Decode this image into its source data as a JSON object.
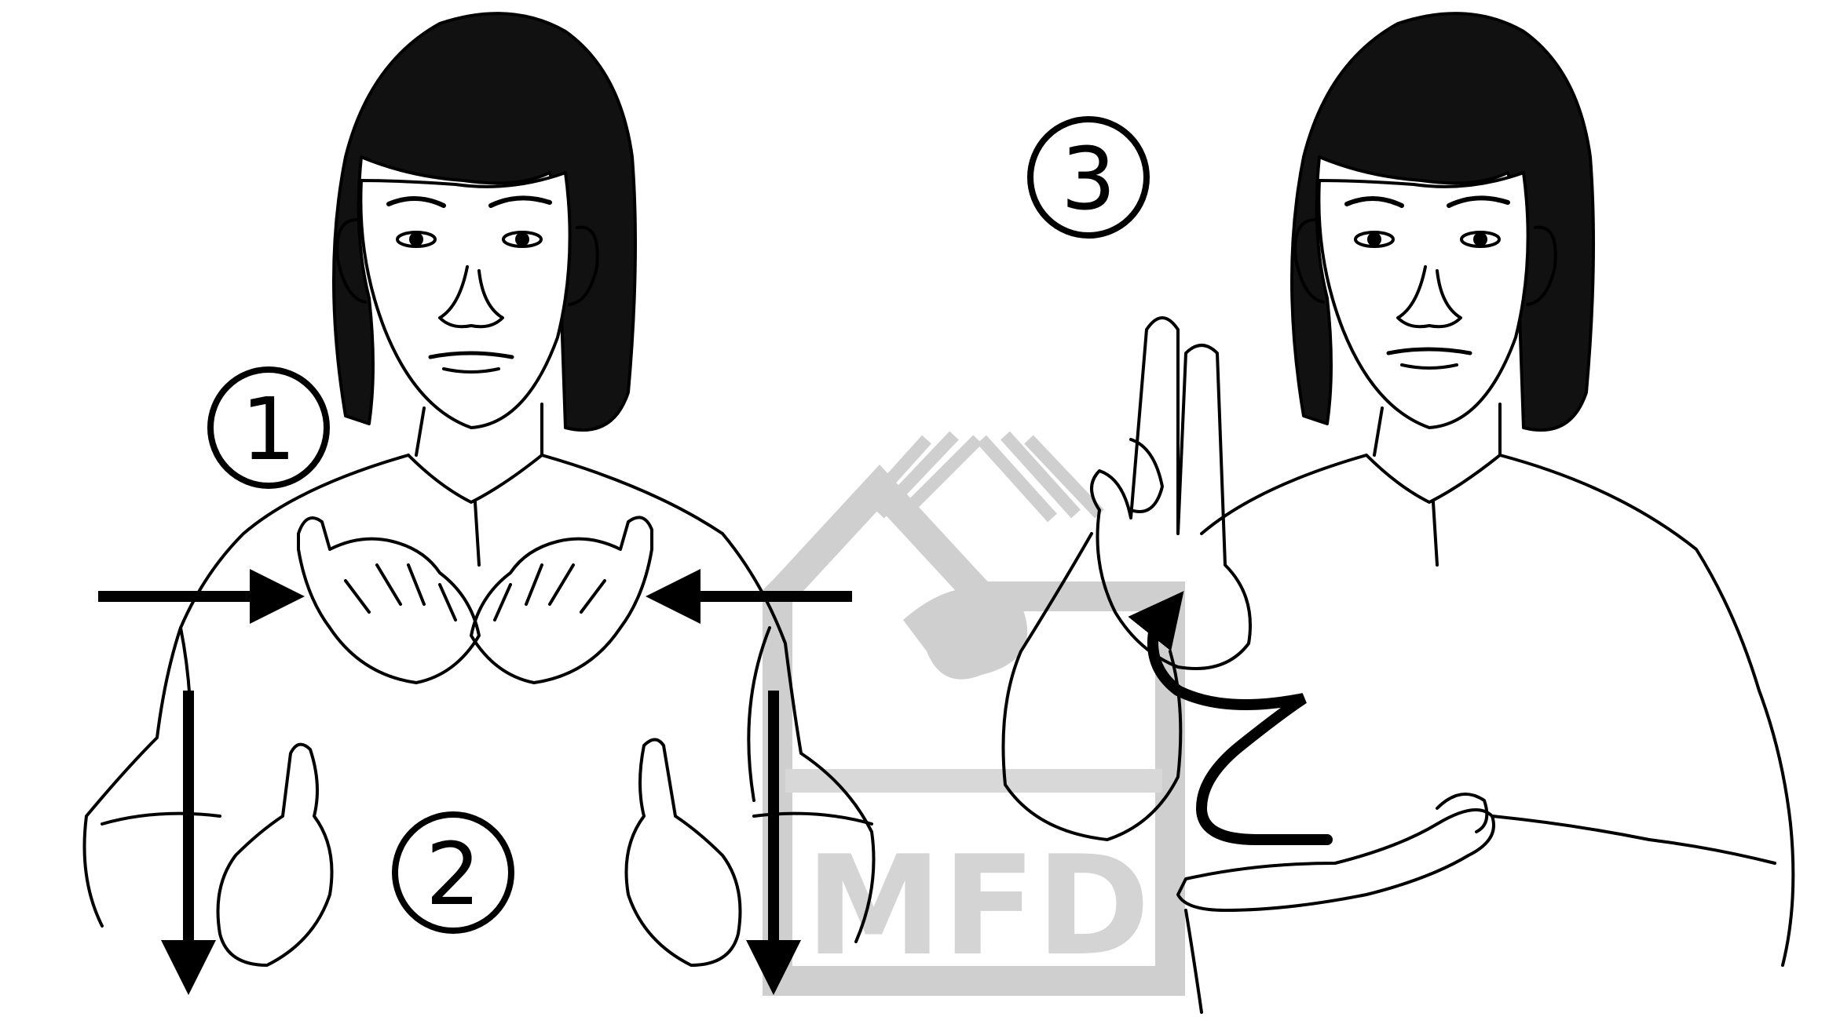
{
  "steps": [
    {
      "number": "1",
      "direction": "hands-move-inward"
    },
    {
      "number": "2",
      "direction": "hands-move-downward"
    },
    {
      "number": "3",
      "direction": "hand-wiggles-upward"
    }
  ],
  "watermark": {
    "text": "MFD",
    "color": "#cfcfcf"
  },
  "colors": {
    "ink": "#000000",
    "background": "#ffffff"
  }
}
